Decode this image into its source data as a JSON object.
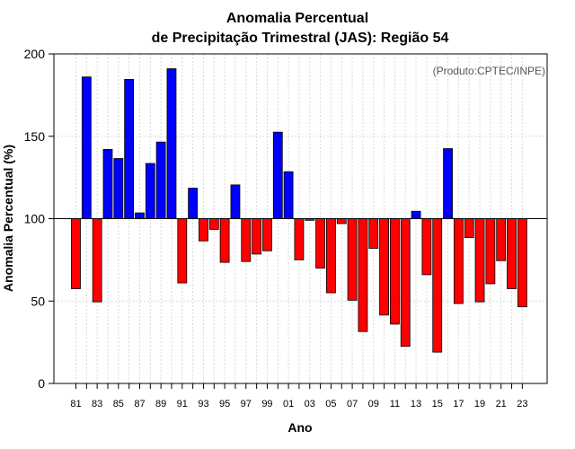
{
  "chart_data": {
    "type": "bar",
    "title_line1": "Anomalia Percentual",
    "title_line2": "de Precipitação Trimestral (JAS): Região 54",
    "xlabel": "Ano",
    "ylabel": "Anomalia Percentual (%)",
    "credit": "(Produto:CPTEC/INPE)",
    "baseline": 100,
    "ylim": [
      0,
      200
    ],
    "yticks": [
      0,
      50,
      100,
      150,
      200
    ],
    "categories": [
      "81",
      "82",
      "83",
      "84",
      "85",
      "86",
      "87",
      "88",
      "89",
      "90",
      "91",
      "92",
      "93",
      "94",
      "95",
      "96",
      "97",
      "98",
      "99",
      "00",
      "01",
      "02",
      "03",
      "04",
      "05",
      "06",
      "07",
      "08",
      "09",
      "10",
      "11",
      "12",
      "13",
      "14",
      "15",
      "16",
      "17",
      "18",
      "19",
      "20",
      "21",
      "22",
      "23"
    ],
    "xtick_labels": [
      "81",
      "83",
      "85",
      "87",
      "89",
      "91",
      "93",
      "95",
      "97",
      "99",
      "01",
      "03",
      "05",
      "07",
      "09",
      "11",
      "13",
      "15",
      "17",
      "19",
      "21",
      "23"
    ],
    "values": [
      57.5,
      186,
      49.5,
      142,
      136.5,
      184.5,
      103.5,
      133.5,
      146.5,
      191,
      61,
      118.5,
      86.5,
      93.5,
      73.5,
      120.5,
      74,
      78.5,
      80.5,
      152.5,
      128.5,
      75,
      99,
      70,
      55,
      97,
      50.5,
      31.5,
      82,
      41.5,
      36,
      22.5,
      104.5,
      66,
      19,
      142.5,
      48.5,
      88.5,
      49.5,
      60.5,
      74.5,
      57.5,
      46.5
    ],
    "colors": {
      "above": "#0000ff",
      "below": "#ff0000",
      "edge": "#000000",
      "grid": "#d9d9d9"
    }
  }
}
